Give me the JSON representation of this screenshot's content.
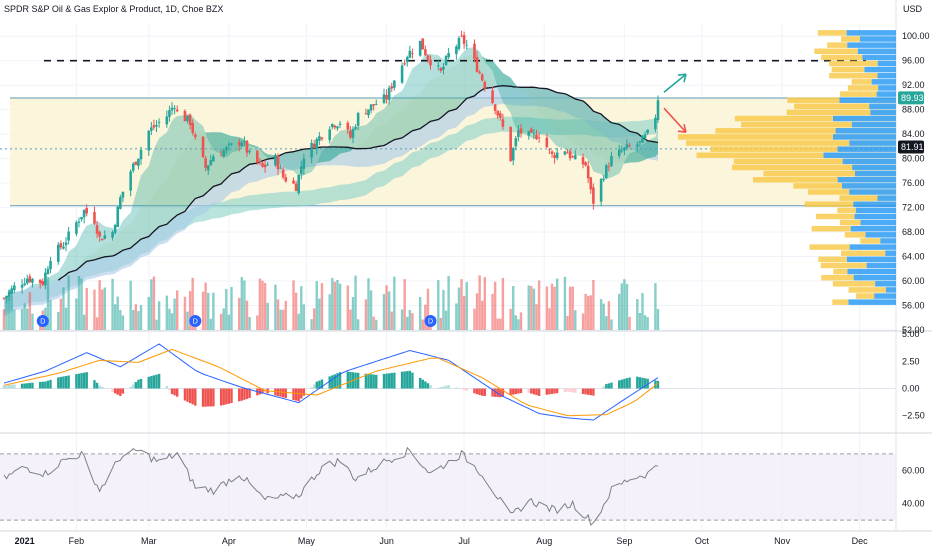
{
  "header": {
    "title": "SPDR S&P Oil & Gas Explor & Product, 1D, Choe BZX",
    "currency": "USD"
  },
  "chart_data": [
    {
      "type": "candlestick",
      "title": "SPDR S&P Oil & Gas Explor & Product, 1D, Choe BZX",
      "ylim": [
        52,
        102
      ],
      "y_ticks": [
        "100.00",
        "96.00",
        "92.00",
        "88.00",
        "84.00",
        "80.00",
        "76.00",
        "72.00",
        "68.00",
        "64.00",
        "60.00",
        "56.00",
        "52.00"
      ],
      "x_ticks": [
        "2021",
        "Feb",
        "Mar",
        "Apr",
        "May",
        "Jun",
        "Jul",
        "Aug",
        "Sep",
        "Oct",
        "Nov",
        "Dec"
      ],
      "price_badges": [
        {
          "label": "89.93",
          "value": 89.93,
          "color": "#26a69a"
        },
        {
          "label": "81.91",
          "value": 81.91,
          "color": "#131722"
        }
      ],
      "levels": {
        "resistance_dashed": 96.0,
        "box_top": 89.9,
        "box_bottom": 72.3,
        "dotted": 81.6
      },
      "dividend_markers": [
        "D",
        "D",
        "D"
      ],
      "close_path": [
        [
          "2021-01-04",
          57.2
        ],
        [
          "2021-01-08",
          59.0
        ],
        [
          "2021-01-13",
          60.5
        ],
        [
          "2021-01-19",
          59.8
        ],
        [
          "2021-01-22",
          64.0
        ],
        [
          "2021-01-27",
          66.0
        ],
        [
          "2021-02-01",
          69.5
        ],
        [
          "2021-02-04",
          71.5
        ],
        [
          "2021-02-08",
          70.0
        ],
        [
          "2021-02-10",
          67.0
        ],
        [
          "2021-02-15",
          68.0
        ],
        [
          "2021-02-18",
          73.5
        ],
        [
          "2021-02-22",
          78.0
        ],
        [
          "2021-02-25",
          80.5
        ],
        [
          "2021-03-01",
          84.5
        ],
        [
          "2021-03-04",
          85.5
        ],
        [
          "2021-03-08",
          87.0
        ],
        [
          "2021-03-11",
          89.0
        ],
        [
          "2021-03-12",
          87.5
        ],
        [
          "2021-03-17",
          86.0
        ],
        [
          "2021-03-19",
          83.0
        ],
        [
          "2021-03-23",
          78.5
        ],
        [
          "2021-03-26",
          80.5
        ],
        [
          "2021-03-31",
          81.5
        ],
        [
          "2021-04-06",
          83.0
        ],
        [
          "2021-04-09",
          80.5
        ],
        [
          "2021-04-14",
          78.5
        ],
        [
          "2021-04-19",
          80.0
        ],
        [
          "2021-04-22",
          77.0
        ],
        [
          "2021-04-27",
          75.5
        ],
        [
          "2021-04-30",
          80.5
        ],
        [
          "2021-05-05",
          83.0
        ],
        [
          "2021-05-10",
          85.5
        ],
        [
          "2021-05-14",
          86.0
        ],
        [
          "2021-05-18",
          83.5
        ],
        [
          "2021-05-21",
          87.0
        ],
        [
          "2021-05-26",
          88.5
        ],
        [
          "2021-06-01",
          90.0
        ],
        [
          "2021-06-04",
          93.0
        ],
        [
          "2021-06-09",
          97.0
        ],
        [
          "2021-06-14",
          99.0
        ],
        [
          "2021-06-17",
          96.5
        ],
        [
          "2021-06-22",
          94.0
        ],
        [
          "2021-06-25",
          97.0
        ],
        [
          "2021-06-30",
          99.5
        ],
        [
          "2021-07-02",
          98.5
        ],
        [
          "2021-07-07",
          94.0
        ],
        [
          "2021-07-09",
          92.0
        ],
        [
          "2021-07-13",
          88.5
        ],
        [
          "2021-07-16",
          85.0
        ],
        [
          "2021-07-19",
          80.0
        ],
        [
          "2021-07-22",
          84.5
        ],
        [
          "2021-07-27",
          83.5
        ],
        [
          "2021-07-30",
          84.0
        ],
        [
          "2021-08-04",
          80.5
        ],
        [
          "2021-08-09",
          81.5
        ],
        [
          "2021-08-12",
          80.0
        ],
        [
          "2021-08-17",
          79.0
        ],
        [
          "2021-08-19",
          74.5
        ],
        [
          "2021-08-20",
          73.0
        ],
        [
          "2021-08-24",
          77.5
        ],
        [
          "2021-08-27",
          80.0
        ],
        [
          "2021-09-01",
          81.5
        ],
        [
          "2021-09-07",
          82.5
        ],
        [
          "2021-09-10",
          84.0
        ],
        [
          "2021-09-13",
          87.0
        ],
        [
          "2021-09-14",
          89.9
        ]
      ],
      "projection_arrows": [
        {
          "direction": "up",
          "color": "#26a69a"
        },
        {
          "direction": "down",
          "color": "#ef5350"
        }
      ]
    },
    {
      "type": "line",
      "name": "MACD",
      "ylim": [
        -4,
        5.2
      ],
      "y_ticks": [
        "5.00",
        "2.50",
        "0.00",
        "−2.50"
      ],
      "macd_path": [
        [
          "2021-01-04",
          0.5
        ],
        [
          "2021-01-20",
          1.6
        ],
        [
          "2021-02-05",
          3.3
        ],
        [
          "2021-02-18",
          2.0
        ],
        [
          "2021-03-05",
          4.1
        ],
        [
          "2021-03-20",
          1.5
        ],
        [
          "2021-04-06",
          0.1
        ],
        [
          "2021-04-28",
          -1.3
        ],
        [
          "2021-05-15",
          1.5
        ],
        [
          "2021-06-10",
          3.5
        ],
        [
          "2021-06-25",
          2.6
        ],
        [
          "2021-07-15",
          -0.6
        ],
        [
          "2021-07-30",
          -2.3
        ],
        [
          "2021-08-10",
          -2.7
        ],
        [
          "2021-08-20",
          -2.9
        ],
        [
          "2021-09-01",
          -1.0
        ],
        [
          "2021-09-14",
          1.0
        ]
      ],
      "signal_path": [
        [
          "2021-01-04",
          0.3
        ],
        [
          "2021-01-25",
          1.4
        ],
        [
          "2021-02-10",
          2.6
        ],
        [
          "2021-02-25",
          2.4
        ],
        [
          "2021-03-10",
          3.6
        ],
        [
          "2021-03-28",
          2.0
        ],
        [
          "2021-04-15",
          -0.2
        ],
        [
          "2021-05-05",
          -0.6
        ],
        [
          "2021-05-28",
          1.6
        ],
        [
          "2021-06-20",
          2.9
        ],
        [
          "2021-07-08",
          1.0
        ],
        [
          "2021-07-25",
          -1.5
        ],
        [
          "2021-08-10",
          -2.5
        ],
        [
          "2021-08-25",
          -2.4
        ],
        [
          "2021-09-05",
          -1.2
        ],
        [
          "2021-09-14",
          0.5
        ]
      ]
    },
    {
      "type": "line",
      "name": "RSI",
      "ylim": [
        24,
        82
      ],
      "y_ticks": [
        "60.00",
        "40.00"
      ],
      "upper_band": 70,
      "lower_band": 30,
      "rsi_path": [
        [
          "2021-01-04",
          55
        ],
        [
          "2021-01-12",
          62
        ],
        [
          "2021-01-20",
          58
        ],
        [
          "2021-01-27",
          66
        ],
        [
          "2021-02-03",
          70
        ],
        [
          "2021-02-10",
          48
        ],
        [
          "2021-02-18",
          68
        ],
        [
          "2021-02-25",
          72
        ],
        [
          "2021-03-05",
          65
        ],
        [
          "2021-03-12",
          70
        ],
        [
          "2021-03-19",
          50
        ],
        [
          "2021-03-26",
          48
        ],
        [
          "2021-04-05",
          58
        ],
        [
          "2021-04-15",
          42
        ],
        [
          "2021-04-28",
          45
        ],
        [
          "2021-05-07",
          62
        ],
        [
          "2021-05-14",
          66
        ],
        [
          "2021-05-20",
          55
        ],
        [
          "2021-06-01",
          66
        ],
        [
          "2021-06-10",
          72
        ],
        [
          "2021-06-18",
          58
        ],
        [
          "2021-06-30",
          70
        ],
        [
          "2021-07-08",
          58
        ],
        [
          "2021-07-19",
          32
        ],
        [
          "2021-07-26",
          42
        ],
        [
          "2021-08-05",
          36
        ],
        [
          "2021-08-12",
          40
        ],
        [
          "2021-08-20",
          28
        ],
        [
          "2021-08-27",
          48
        ],
        [
          "2021-09-03",
          55
        ],
        [
          "2021-09-10",
          58
        ],
        [
          "2021-09-14",
          63
        ]
      ]
    }
  ]
}
